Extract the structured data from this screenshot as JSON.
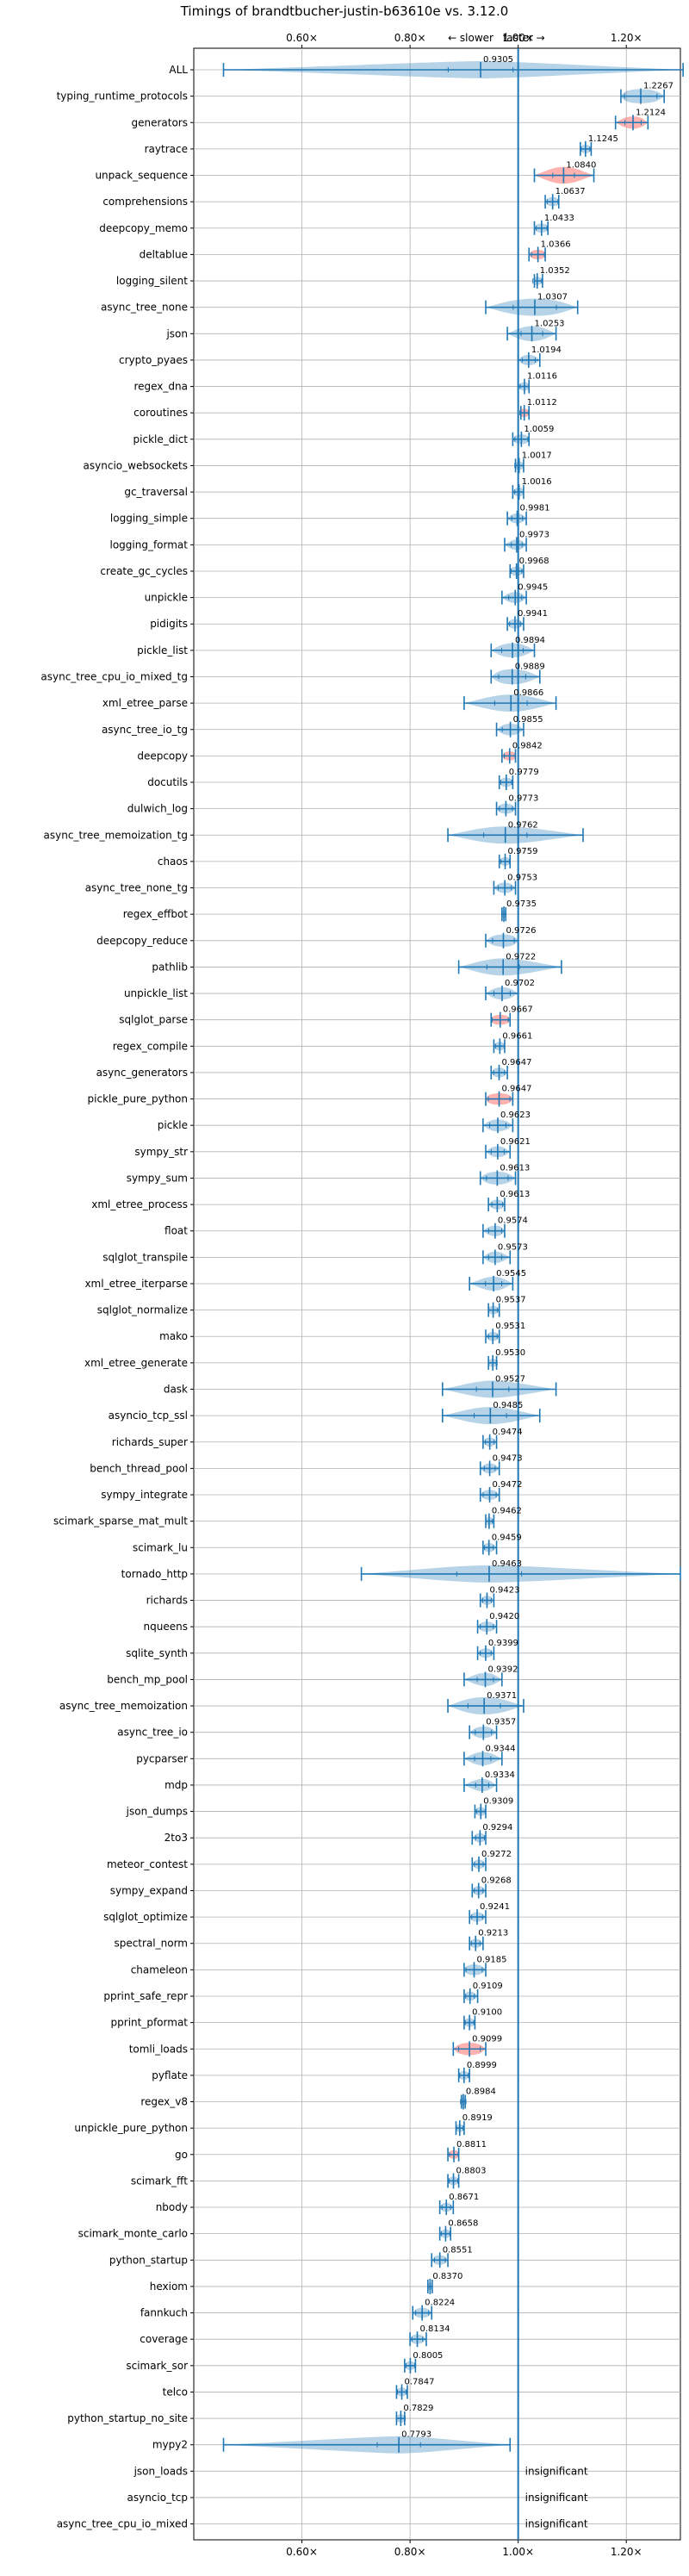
{
  "chart_data": {
    "type": "violin",
    "title": "Timings of brandtbucher-justin-b63610e vs. 3.12.0",
    "direction_labels": {
      "slower": "← slower",
      "faster": "faster →"
    },
    "x_ticks": [
      0.6,
      0.8,
      1.0,
      1.2
    ],
    "x_tick_labels": [
      "0.60×",
      "0.80×",
      "1.00×",
      "1.20×"
    ],
    "xlim": [
      0.4,
      1.3
    ],
    "reference_line": 1.0,
    "grid": true,
    "colors": {
      "violin": "#1f77b4",
      "highlight": "#ff9896",
      "line": "#1f77b4"
    },
    "insignificant_label": "insignificant",
    "benchmarks": [
      {
        "name": "ALL",
        "value": 0.9305,
        "label": "0.9305",
        "lo": 0.455,
        "hi": 1.305,
        "spread": 0.06,
        "significant": true
      },
      {
        "name": "typing_runtime_protocols",
        "value": 1.2267,
        "label": "1.2267",
        "lo": 1.19,
        "hi": 1.27,
        "spread": 0.03,
        "significant": true
      },
      {
        "name": "generators",
        "value": 1.2124,
        "label": "1.2124",
        "lo": 1.18,
        "hi": 1.24,
        "spread": 0.015,
        "highlight": true,
        "significant": true
      },
      {
        "name": "raytrace",
        "value": 1.1245,
        "label": "1.1245",
        "lo": 1.115,
        "hi": 1.135,
        "spread": 0.008,
        "significant": true
      },
      {
        "name": "unpack_sequence",
        "value": 1.084,
        "label": "1.0840",
        "lo": 1.03,
        "hi": 1.14,
        "spread": 0.02,
        "highlight": true,
        "significant": true
      },
      {
        "name": "comprehensions",
        "value": 1.0637,
        "label": "1.0637",
        "lo": 1.05,
        "hi": 1.075,
        "spread": 0.01,
        "significant": true
      },
      {
        "name": "deepcopy_memo",
        "value": 1.0433,
        "label": "1.0433",
        "lo": 1.03,
        "hi": 1.055,
        "spread": 0.01,
        "significant": true
      },
      {
        "name": "deltablue",
        "value": 1.0366,
        "label": "1.0366",
        "lo": 1.02,
        "hi": 1.05,
        "spread": 0.012,
        "highlight": true,
        "significant": true
      },
      {
        "name": "logging_silent",
        "value": 1.0352,
        "label": "1.0352",
        "lo": 1.03,
        "hi": 1.045,
        "spread": 0.008,
        "significant": true
      },
      {
        "name": "async_tree_none",
        "value": 1.0307,
        "label": "1.0307",
        "lo": 0.94,
        "hi": 1.11,
        "spread": 0.04,
        "significant": true
      },
      {
        "name": "json",
        "value": 1.0253,
        "label": "1.0253",
        "lo": 0.98,
        "hi": 1.07,
        "spread": 0.02,
        "significant": true
      },
      {
        "name": "crypto_pyaes",
        "value": 1.0194,
        "label": "1.0194",
        "lo": 1.0,
        "hi": 1.04,
        "spread": 0.012,
        "significant": true
      },
      {
        "name": "regex_dna",
        "value": 1.0116,
        "label": "1.0116",
        "lo": 1.0,
        "hi": 1.02,
        "spread": 0.008,
        "significant": true
      },
      {
        "name": "coroutines",
        "value": 1.0112,
        "label": "1.0112",
        "lo": 1.005,
        "hi": 1.02,
        "spread": 0.008,
        "highlight": true,
        "significant": true
      },
      {
        "name": "pickle_dict",
        "value": 1.0059,
        "label": "1.0059",
        "lo": 0.99,
        "hi": 1.02,
        "spread": 0.012,
        "significant": true
      },
      {
        "name": "asyncio_websockets",
        "value": 1.0017,
        "label": "1.0017",
        "lo": 0.995,
        "hi": 1.01,
        "spread": 0.008,
        "significant": true
      },
      {
        "name": "gc_traversal",
        "value": 1.0016,
        "label": "1.0016",
        "lo": 0.99,
        "hi": 1.01,
        "spread": 0.008,
        "significant": true
      },
      {
        "name": "logging_simple",
        "value": 0.9981,
        "label": "0.9981",
        "lo": 0.98,
        "hi": 1.015,
        "spread": 0.01,
        "significant": true
      },
      {
        "name": "logging_format",
        "value": 0.9973,
        "label": "0.9973",
        "lo": 0.975,
        "hi": 1.015,
        "spread": 0.01,
        "significant": true
      },
      {
        "name": "create_gc_cycles",
        "value": 0.9968,
        "label": "0.9968",
        "lo": 0.985,
        "hi": 1.01,
        "spread": 0.01,
        "significant": true
      },
      {
        "name": "unpickle",
        "value": 0.9945,
        "label": "0.9945",
        "lo": 0.97,
        "hi": 1.015,
        "spread": 0.012,
        "significant": true
      },
      {
        "name": "pidigits",
        "value": 0.9941,
        "label": "0.9941",
        "lo": 0.98,
        "hi": 1.01,
        "spread": 0.01,
        "significant": true
      },
      {
        "name": "pickle_list",
        "value": 0.9894,
        "label": "0.9894",
        "lo": 0.95,
        "hi": 1.03,
        "spread": 0.02,
        "significant": true
      },
      {
        "name": "async_tree_cpu_io_mixed_tg",
        "value": 0.9889,
        "label": "0.9889",
        "lo": 0.95,
        "hi": 1.04,
        "spread": 0.025,
        "significant": true
      },
      {
        "name": "xml_etree_parse",
        "value": 0.9866,
        "label": "0.9866",
        "lo": 0.9,
        "hi": 1.07,
        "spread": 0.03,
        "significant": true
      },
      {
        "name": "async_tree_io_tg",
        "value": 0.9855,
        "label": "0.9855",
        "lo": 0.96,
        "hi": 1.01,
        "spread": 0.015,
        "significant": true
      },
      {
        "name": "deepcopy",
        "value": 0.9842,
        "label": "0.9842",
        "lo": 0.97,
        "hi": 0.995,
        "spread": 0.01,
        "highlight": true,
        "significant": true
      },
      {
        "name": "docutils",
        "value": 0.9779,
        "label": "0.9779",
        "lo": 0.965,
        "hi": 0.99,
        "spread": 0.01,
        "significant": true
      },
      {
        "name": "dulwich_log",
        "value": 0.9773,
        "label": "0.9773",
        "lo": 0.96,
        "hi": 0.995,
        "spread": 0.012,
        "significant": true
      },
      {
        "name": "async_tree_memoization_tg",
        "value": 0.9762,
        "label": "0.9762",
        "lo": 0.87,
        "hi": 1.12,
        "spread": 0.04,
        "significant": true
      },
      {
        "name": "chaos",
        "value": 0.9759,
        "label": "0.9759",
        "lo": 0.965,
        "hi": 0.985,
        "spread": 0.008,
        "significant": true
      },
      {
        "name": "async_tree_none_tg",
        "value": 0.9753,
        "label": "0.9753",
        "lo": 0.955,
        "hi": 0.995,
        "spread": 0.012,
        "significant": true
      },
      {
        "name": "regex_effbot",
        "value": 0.9735,
        "label": "0.9735",
        "lo": 0.97,
        "hi": 0.977,
        "spread": 0.004,
        "significant": true
      },
      {
        "name": "deepcopy_reduce",
        "value": 0.9726,
        "label": "0.9726",
        "lo": 0.94,
        "hi": 1.0,
        "spread": 0.02,
        "significant": true
      },
      {
        "name": "pathlib",
        "value": 0.9722,
        "label": "0.9722",
        "lo": 0.89,
        "hi": 1.08,
        "spread": 0.03,
        "significant": true
      },
      {
        "name": "unpickle_list",
        "value": 0.9702,
        "label": "0.9702",
        "lo": 0.94,
        "hi": 1.0,
        "spread": 0.015,
        "significant": true
      },
      {
        "name": "sqlglot_parse",
        "value": 0.9667,
        "label": "0.9667",
        "lo": 0.95,
        "hi": 0.985,
        "spread": 0.015,
        "highlight": true,
        "significant": true
      },
      {
        "name": "regex_compile",
        "value": 0.9661,
        "label": "0.9661",
        "lo": 0.955,
        "hi": 0.975,
        "spread": 0.008,
        "significant": true
      },
      {
        "name": "async_generators",
        "value": 0.9647,
        "label": "0.9647",
        "lo": 0.95,
        "hi": 0.98,
        "spread": 0.01,
        "significant": true
      },
      {
        "name": "pickle_pure_python",
        "value": 0.9647,
        "label": "0.9647",
        "lo": 0.94,
        "hi": 0.99,
        "spread": 0.02,
        "highlight": true,
        "significant": true
      },
      {
        "name": "pickle",
        "value": 0.9623,
        "label": "0.9623",
        "lo": 0.935,
        "hi": 0.99,
        "spread": 0.015,
        "significant": true
      },
      {
        "name": "sympy_str",
        "value": 0.9621,
        "label": "0.9621",
        "lo": 0.94,
        "hi": 0.985,
        "spread": 0.012,
        "significant": true
      },
      {
        "name": "sympy_sum",
        "value": 0.9613,
        "label": "0.9613",
        "lo": 0.93,
        "hi": 0.995,
        "spread": 0.02,
        "significant": true
      },
      {
        "name": "xml_etree_process",
        "value": 0.9613,
        "label": "0.9613",
        "lo": 0.945,
        "hi": 0.975,
        "spread": 0.01,
        "significant": true
      },
      {
        "name": "float",
        "value": 0.9574,
        "label": "0.9574",
        "lo": 0.935,
        "hi": 0.975,
        "spread": 0.012,
        "significant": true
      },
      {
        "name": "sqlglot_transpile",
        "value": 0.9573,
        "label": "0.9573",
        "lo": 0.935,
        "hi": 0.985,
        "spread": 0.012,
        "significant": true
      },
      {
        "name": "xml_etree_iterparse",
        "value": 0.9545,
        "label": "0.9545",
        "lo": 0.91,
        "hi": 0.99,
        "spread": 0.015,
        "significant": true
      },
      {
        "name": "sqlglot_normalize",
        "value": 0.9537,
        "label": "0.9537",
        "lo": 0.945,
        "hi": 0.965,
        "spread": 0.008,
        "significant": true
      },
      {
        "name": "mako",
        "value": 0.9531,
        "label": "0.9531",
        "lo": 0.94,
        "hi": 0.965,
        "spread": 0.008,
        "significant": true
      },
      {
        "name": "xml_etree_generate",
        "value": 0.953,
        "label": "0.9530",
        "lo": 0.945,
        "hi": 0.96,
        "spread": 0.008,
        "significant": true
      },
      {
        "name": "dask",
        "value": 0.9527,
        "label": "0.9527",
        "lo": 0.86,
        "hi": 1.07,
        "spread": 0.03,
        "significant": true
      },
      {
        "name": "asyncio_tcp_ssl",
        "value": 0.9485,
        "label": "0.9485",
        "lo": 0.86,
        "hi": 1.04,
        "spread": 0.03,
        "significant": true
      },
      {
        "name": "richards_super",
        "value": 0.9474,
        "label": "0.9474",
        "lo": 0.935,
        "hi": 0.96,
        "spread": 0.008,
        "significant": true
      },
      {
        "name": "bench_thread_pool",
        "value": 0.9473,
        "label": "0.9473",
        "lo": 0.93,
        "hi": 0.965,
        "spread": 0.01,
        "significant": true
      },
      {
        "name": "sympy_integrate",
        "value": 0.9472,
        "label": "0.9472",
        "lo": 0.93,
        "hi": 0.965,
        "spread": 0.012,
        "significant": true
      },
      {
        "name": "scimark_sparse_mat_mult",
        "value": 0.9462,
        "label": "0.9462",
        "lo": 0.94,
        "hi": 0.955,
        "spread": 0.006,
        "significant": true
      },
      {
        "name": "scimark_lu",
        "value": 0.9459,
        "label": "0.9459",
        "lo": 0.935,
        "hi": 0.96,
        "spread": 0.008,
        "significant": true
      },
      {
        "name": "tornado_http",
        "value": 0.9463,
        "label": "0.9463",
        "lo": 0.71,
        "hi": 1.3,
        "spread": 0.06,
        "significant": true
      },
      {
        "name": "richards",
        "value": 0.9423,
        "label": "0.9423",
        "lo": 0.93,
        "hi": 0.955,
        "spread": 0.008,
        "significant": true
      },
      {
        "name": "nqueens",
        "value": 0.942,
        "label": "0.9420",
        "lo": 0.925,
        "hi": 0.96,
        "spread": 0.012,
        "significant": true
      },
      {
        "name": "sqlite_synth",
        "value": 0.9399,
        "label": "0.9399",
        "lo": 0.925,
        "hi": 0.955,
        "spread": 0.01,
        "significant": true
      },
      {
        "name": "bench_mp_pool",
        "value": 0.9392,
        "label": "0.9392",
        "lo": 0.9,
        "hi": 0.97,
        "spread": 0.015,
        "significant": true
      },
      {
        "name": "async_tree_memoization",
        "value": 0.9371,
        "label": "0.9371",
        "lo": 0.87,
        "hi": 1.01,
        "spread": 0.03,
        "significant": true
      },
      {
        "name": "async_tree_io",
        "value": 0.9357,
        "label": "0.9357",
        "lo": 0.91,
        "hi": 0.96,
        "spread": 0.015,
        "significant": true
      },
      {
        "name": "pycparser",
        "value": 0.9344,
        "label": "0.9344",
        "lo": 0.9,
        "hi": 0.97,
        "spread": 0.015,
        "significant": true
      },
      {
        "name": "mdp",
        "value": 0.9334,
        "label": "0.9334",
        "lo": 0.9,
        "hi": 0.96,
        "spread": 0.012,
        "significant": true
      },
      {
        "name": "json_dumps",
        "value": 0.9309,
        "label": "0.9309",
        "lo": 0.92,
        "hi": 0.94,
        "spread": 0.008,
        "significant": true
      },
      {
        "name": "2to3",
        "value": 0.9294,
        "label": "0.9294",
        "lo": 0.915,
        "hi": 0.94,
        "spread": 0.008,
        "significant": true
      },
      {
        "name": "meteor_contest",
        "value": 0.9272,
        "label": "0.9272",
        "lo": 0.915,
        "hi": 0.94,
        "spread": 0.008,
        "significant": true
      },
      {
        "name": "sympy_expand",
        "value": 0.9268,
        "label": "0.9268",
        "lo": 0.915,
        "hi": 0.94,
        "spread": 0.008,
        "significant": true
      },
      {
        "name": "sqlglot_optimize",
        "value": 0.9241,
        "label": "0.9241",
        "lo": 0.91,
        "hi": 0.94,
        "spread": 0.01,
        "significant": true
      },
      {
        "name": "spectral_norm",
        "value": 0.9213,
        "label": "0.9213",
        "lo": 0.91,
        "hi": 0.935,
        "spread": 0.008,
        "significant": true
      },
      {
        "name": "chameleon",
        "value": 0.9185,
        "label": "0.9185",
        "lo": 0.9,
        "hi": 0.94,
        "spread": 0.015,
        "significant": true
      },
      {
        "name": "pprint_safe_repr",
        "value": 0.9109,
        "label": "0.9109",
        "lo": 0.9,
        "hi": 0.925,
        "spread": 0.008,
        "significant": true
      },
      {
        "name": "pprint_pformat",
        "value": 0.91,
        "label": "0.9100",
        "lo": 0.9,
        "hi": 0.92,
        "spread": 0.008,
        "significant": true
      },
      {
        "name": "tomli_loads",
        "value": 0.9099,
        "label": "0.9099",
        "lo": 0.88,
        "hi": 0.94,
        "spread": 0.02,
        "highlight": true,
        "significant": true
      },
      {
        "name": "pyflate",
        "value": 0.8999,
        "label": "0.8999",
        "lo": 0.89,
        "hi": 0.91,
        "spread": 0.008,
        "significant": true
      },
      {
        "name": "regex_v8",
        "value": 0.8984,
        "label": "0.8984",
        "lo": 0.895,
        "hi": 0.902,
        "spread": 0.005,
        "significant": true
      },
      {
        "name": "unpickle_pure_python",
        "value": 0.8919,
        "label": "0.8919",
        "lo": 0.885,
        "hi": 0.9,
        "spread": 0.006,
        "significant": true
      },
      {
        "name": "go",
        "value": 0.8811,
        "label": "0.8811",
        "lo": 0.87,
        "hi": 0.89,
        "spread": 0.008,
        "highlight": true,
        "significant": true
      },
      {
        "name": "scimark_fft",
        "value": 0.8803,
        "label": "0.8803",
        "lo": 0.87,
        "hi": 0.89,
        "spread": 0.008,
        "significant": true
      },
      {
        "name": "nbody",
        "value": 0.8671,
        "label": "0.8671",
        "lo": 0.855,
        "hi": 0.88,
        "spread": 0.008,
        "significant": true
      },
      {
        "name": "scimark_monte_carlo",
        "value": 0.8658,
        "label": "0.8658",
        "lo": 0.855,
        "hi": 0.875,
        "spread": 0.008,
        "significant": true
      },
      {
        "name": "python_startup",
        "value": 0.8551,
        "label": "0.8551",
        "lo": 0.84,
        "hi": 0.87,
        "spread": 0.01,
        "significant": true
      },
      {
        "name": "hexiom",
        "value": 0.837,
        "label": "0.8370",
        "lo": 0.833,
        "hi": 0.841,
        "spread": 0.004,
        "significant": true
      },
      {
        "name": "fannkuch",
        "value": 0.8224,
        "label": "0.8224",
        "lo": 0.805,
        "hi": 0.84,
        "spread": 0.012,
        "significant": true
      },
      {
        "name": "coverage",
        "value": 0.8134,
        "label": "0.8134",
        "lo": 0.8,
        "hi": 0.83,
        "spread": 0.01,
        "significant": true
      },
      {
        "name": "scimark_sor",
        "value": 0.8005,
        "label": "0.8005",
        "lo": 0.79,
        "hi": 0.81,
        "spread": 0.008,
        "significant": true
      },
      {
        "name": "telco",
        "value": 0.7847,
        "label": "0.7847",
        "lo": 0.775,
        "hi": 0.795,
        "spread": 0.008,
        "significant": true
      },
      {
        "name": "python_startup_no_site",
        "value": 0.7829,
        "label": "0.7829",
        "lo": 0.775,
        "hi": 0.79,
        "spread": 0.008,
        "significant": true
      },
      {
        "name": "mypy2",
        "value": 0.7793,
        "label": "0.7793",
        "lo": 0.455,
        "hi": 0.985,
        "spread": 0.04,
        "significant": true
      },
      {
        "name": "json_loads",
        "significant": false
      },
      {
        "name": "asyncio_tcp",
        "significant": false
      },
      {
        "name": "async_tree_cpu_io_mixed",
        "significant": false
      }
    ]
  }
}
